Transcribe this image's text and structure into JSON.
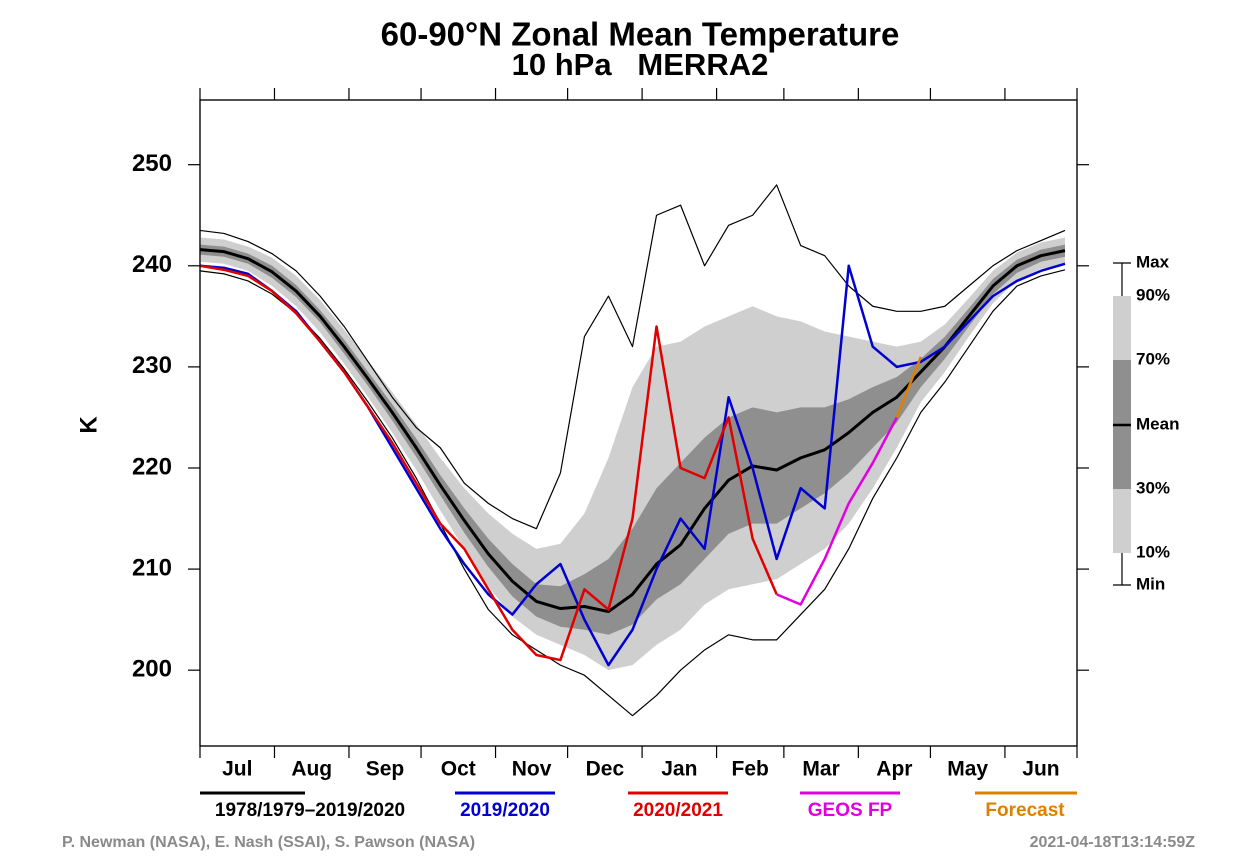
{
  "chart_data": {
    "type": "climatology",
    "title": "60-90°N Zonal Mean Temperature",
    "subtitle": "10 hPa   MERRA2",
    "y_label": "K",
    "categories": [
      "Jul",
      "Aug",
      "Sep",
      "Oct",
      "Nov",
      "Dec",
      "Jan",
      "Feb",
      "Mar",
      "Apr",
      "May",
      "Jun"
    ],
    "xticks": [
      0,
      31,
      62,
      92,
      123,
      153,
      184,
      215,
      243,
      274,
      304,
      335,
      365
    ],
    "xlim": [
      0,
      365
    ],
    "ylim": [
      192.5,
      256.4
    ],
    "yticks": [
      200,
      210,
      220,
      230,
      240,
      250
    ],
    "x": [
      0,
      10,
      20,
      30,
      40,
      50,
      60,
      70,
      80,
      90,
      100,
      110,
      120,
      130,
      140,
      150,
      160,
      170,
      180,
      190,
      200,
      210,
      220,
      230,
      240,
      250,
      260,
      270,
      280,
      290,
      300,
      310,
      320,
      330,
      340,
      350,
      360
    ],
    "climatology_name": "1978/1979–2019/2020",
    "key": [
      {
        "label": "Max",
        "values": [
          243.5,
          243.2,
          242.4,
          241.2,
          239.5,
          237,
          234,
          230.5,
          227,
          224,
          222,
          218.5,
          216.5,
          215,
          214,
          219.5,
          233,
          237,
          232,
          245,
          246,
          240,
          244,
          245,
          248,
          242,
          241,
          238,
          236,
          235.5,
          235.5,
          236,
          238,
          240,
          241.5,
          242.5,
          243.5
        ]
      },
      {
        "label": "90%",
        "values": [
          242.8,
          242.6,
          241.9,
          240.8,
          239.0,
          236.6,
          233.7,
          230.6,
          227.5,
          224.3,
          221.0,
          218.0,
          215.5,
          213.5,
          212.0,
          212.5,
          215.5,
          221.0,
          228.0,
          232.0,
          232.5,
          234.0,
          235.0,
          236.0,
          235.0,
          234.5,
          233.5,
          233.0,
          232.5,
          232.0,
          232.5,
          234.2,
          236.8,
          239.5,
          241.3,
          242.3,
          242.8
        ]
      },
      {
        "label": "70%",
        "values": [
          242.1,
          241.9,
          241.2,
          240.0,
          238.1,
          235.6,
          232.7,
          229.5,
          226.3,
          222.9,
          219.3,
          216.0,
          213.0,
          210.5,
          208.5,
          208.3,
          209.5,
          211.0,
          214.0,
          218.0,
          220.5,
          223.0,
          225.0,
          226.0,
          225.5,
          226.0,
          226.0,
          226.8,
          228.0,
          229.0,
          230.8,
          233.0,
          235.8,
          238.7,
          240.6,
          241.6,
          242.1
        ]
      },
      {
        "label": "Mean",
        "values": [
          241.6,
          241.4,
          240.7,
          239.4,
          237.5,
          235.0,
          232.0,
          228.8,
          225.5,
          222.0,
          218.3,
          214.8,
          211.5,
          208.8,
          206.8,
          206.1,
          206.3,
          205.8,
          207.5,
          210.5,
          212.4,
          216.0,
          218.8,
          220.2,
          219.8,
          221.0,
          221.8,
          223.5,
          225.5,
          227.0,
          229.5,
          232.0,
          235.0,
          238.0,
          240.0,
          241.0,
          241.5
        ]
      },
      {
        "label": "30%",
        "values": [
          241.1,
          240.9,
          240.2,
          238.8,
          236.9,
          234.4,
          231.3,
          228.1,
          224.7,
          221.1,
          217.3,
          213.6,
          210.2,
          207.3,
          205.3,
          204.3,
          204.0,
          203.5,
          204.5,
          207.0,
          208.5,
          211.0,
          213.5,
          214.5,
          214.5,
          216.0,
          217.5,
          219.5,
          222.0,
          224.5,
          228.0,
          230.8,
          234.0,
          237.2,
          239.3,
          240.4,
          240.9
        ]
      },
      {
        "label": "10%",
        "values": [
          240.4,
          240.2,
          239.5,
          238.0,
          236.0,
          233.4,
          230.3,
          227.0,
          223.5,
          219.8,
          215.8,
          212.0,
          208.3,
          205.3,
          203.5,
          202.5,
          201.5,
          200.0,
          200.5,
          202.5,
          204.0,
          206.5,
          208.0,
          208.5,
          209.0,
          210.5,
          212.0,
          214.5,
          218.0,
          222.0,
          226.5,
          229.5,
          233.0,
          236.3,
          238.6,
          239.7,
          240.2
        ]
      },
      {
        "label": "Min",
        "values": [
          239.5,
          239.2,
          238.5,
          237.2,
          235.3,
          232.8,
          229.8,
          226.5,
          223,
          219,
          214.5,
          210,
          206,
          203.5,
          202,
          200.5,
          199.5,
          197.5,
          195.5,
          197.5,
          200,
          202,
          203.5,
          203,
          203,
          205.5,
          208,
          212,
          217,
          221,
          225.5,
          228.5,
          232,
          235.5,
          238,
          239,
          239.6
        ]
      }
    ],
    "band_colors": [
      "#cfcfcf",
      "#8f8f8f"
    ],
    "mean_color": "#000000",
    "series": [
      {
        "name": "2019/2020",
        "color": "#0000d0",
        "values": [
          240,
          239.8,
          239.2,
          237.5,
          235.5,
          232.5,
          229.5,
          226,
          222,
          218,
          214,
          210.5,
          207.5,
          205.5,
          208.5,
          210.5,
          205,
          200.5,
          204,
          210,
          215,
          212,
          227,
          220,
          211,
          218,
          216,
          240,
          232,
          230,
          230.5,
          232,
          234.5,
          237,
          238.5,
          239.5,
          240.2
        ]
      },
      {
        "name": "2020/2021",
        "color": "#e00000",
        "values": [
          240,
          239.6,
          239,
          237.5,
          235.3,
          232.5,
          229.5,
          226,
          222.5,
          218.5,
          214.5,
          212,
          208,
          204,
          201.5,
          201,
          208,
          206,
          215,
          234,
          220,
          219,
          225,
          213,
          207.5,
          null,
          null,
          null,
          null,
          null,
          null,
          null,
          null,
          null,
          null,
          null,
          null
        ]
      },
      {
        "name": "GEOS FP",
        "color": "#e000e0",
        "values": [
          null,
          null,
          null,
          null,
          null,
          null,
          null,
          null,
          null,
          null,
          null,
          null,
          null,
          null,
          null,
          null,
          null,
          null,
          null,
          null,
          null,
          null,
          null,
          null,
          207.5,
          206.5,
          211,
          216.5,
          220.5,
          225,
          null,
          null,
          null,
          null,
          null,
          null,
          null
        ]
      },
      {
        "name": "Forecast",
        "color": "#e08000",
        "values": [
          null,
          null,
          null,
          null,
          null,
          null,
          null,
          null,
          null,
          null,
          null,
          null,
          null,
          null,
          null,
          null,
          null,
          null,
          null,
          null,
          null,
          null,
          null,
          null,
          null,
          null,
          null,
          null,
          null,
          225,
          231,
          null,
          null,
          null,
          null,
          null,
          null
        ]
      }
    ],
    "credit": "P. Newman (NASA), E. Nash (SSAI), S. Pawson (NASA)",
    "timestamp": "2021-04-18T13:14:59Z"
  }
}
